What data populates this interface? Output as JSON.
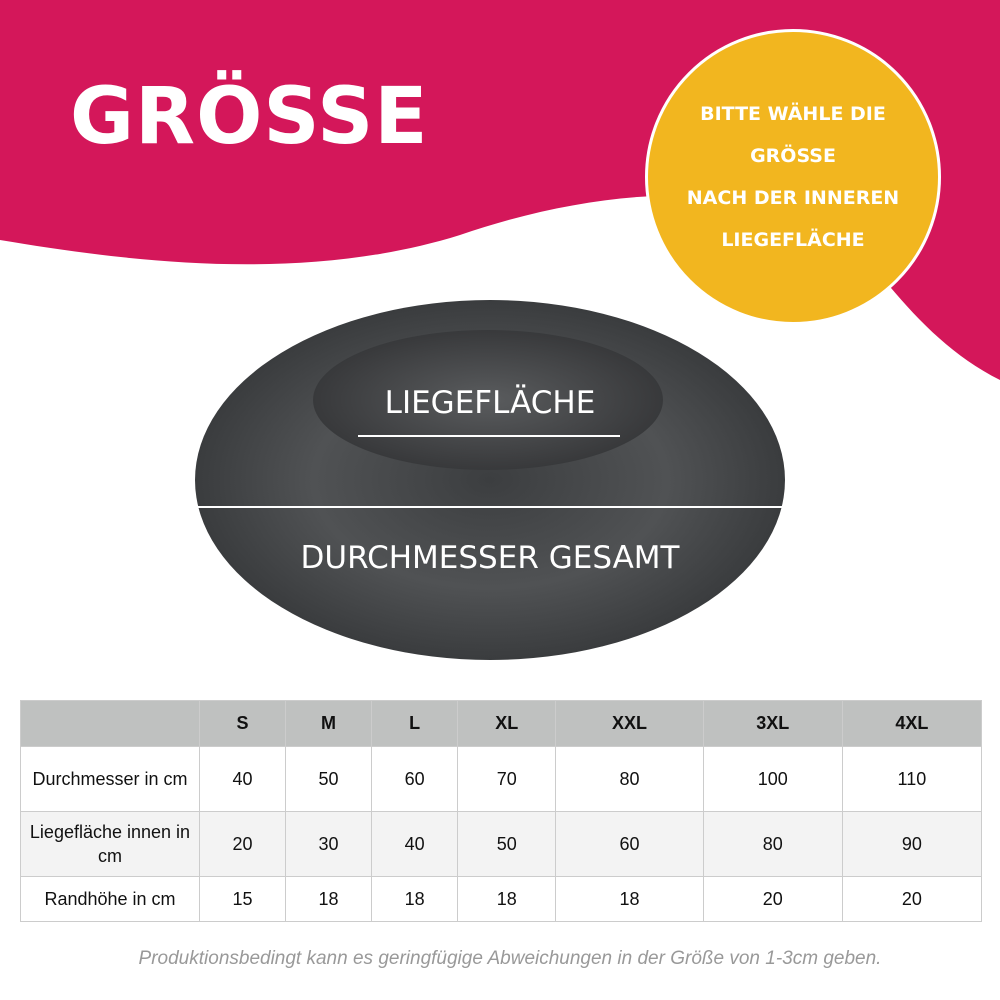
{
  "title": "GRÖSSE",
  "badge": {
    "lines": [
      "BITTE WÄHLE DIE",
      "GRÖSSE",
      "NACH DER INNEREN",
      "LIEGEFLÄCHE"
    ]
  },
  "colors": {
    "brand": "#d4175a",
    "badge": "#f2b61f",
    "bed": "#4a4c4e"
  },
  "image": {
    "inner_label": "LIEGEFLÄCHE",
    "outer_label": "DURCHMESSER GESAMT"
  },
  "table": {
    "headers": [
      "",
      "S",
      "M",
      "L",
      "XL",
      "XXL",
      "3XL",
      "4XL"
    ],
    "rows": [
      {
        "label": "Durchmesser in cm",
        "values": [
          "40",
          "50",
          "60",
          "70",
          "80",
          "100",
          "110"
        ]
      },
      {
        "label": "Liegefläche innen in cm",
        "values": [
          "20",
          "30",
          "40",
          "50",
          "60",
          "80",
          "90"
        ]
      },
      {
        "label": "Randhöhe in cm",
        "values": [
          "15",
          "18",
          "18",
          "18",
          "18",
          "20",
          "20"
        ]
      }
    ]
  },
  "note": "Produktionsbedingt kann es geringfügige Abweichungen in der Größe von 1-3cm geben."
}
